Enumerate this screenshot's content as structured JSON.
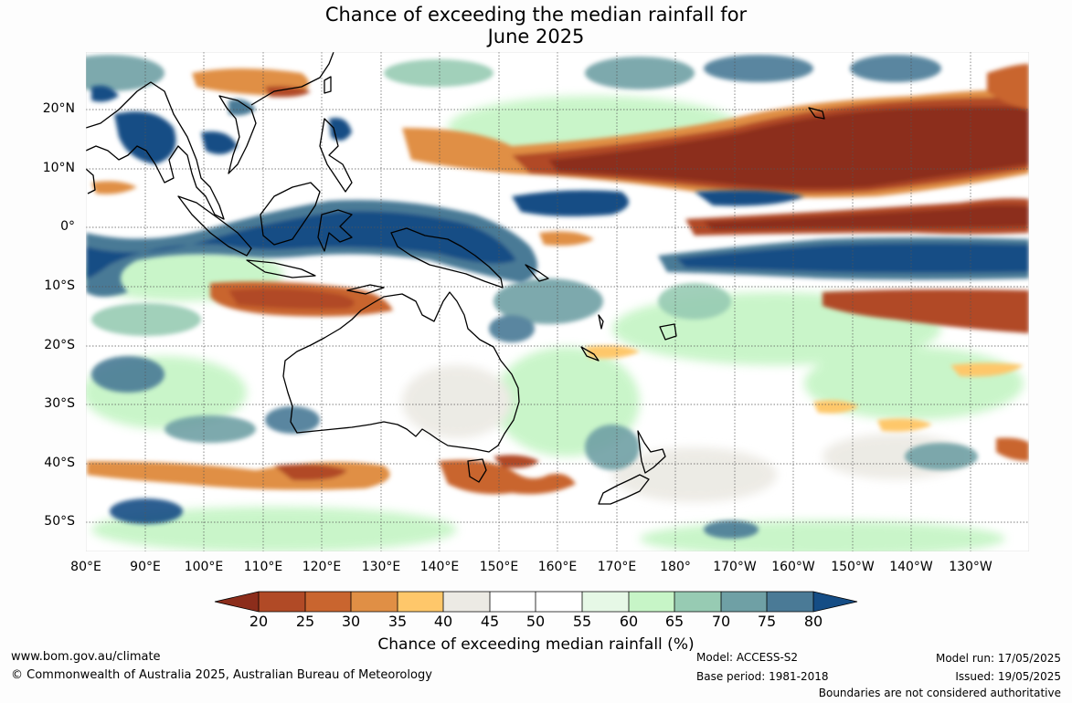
{
  "title": {
    "line1": "Chance of exceeding the median rainfall for",
    "line2": "June 2025"
  },
  "map": {
    "latitude_labels": [
      "20°N",
      "10°N",
      "0°",
      "10°S",
      "20°S",
      "30°S",
      "40°S",
      "50°S"
    ],
    "longitude_labels": [
      "80°E",
      "90°E",
      "100°E",
      "110°E",
      "120°E",
      "130°E",
      "140°E",
      "150°E",
      "160°E",
      "170°E",
      "180°",
      "170°W",
      "160°W",
      "150°W",
      "140°W",
      "130°W"
    ],
    "regions_shown": [
      "Australia",
      "New Zealand",
      "Indonesia",
      "Papua New Guinea",
      "Philippines",
      "South-East Asia",
      "Tropical Pacific Ocean",
      "Indian Ocean"
    ]
  },
  "legend": {
    "title": "Chance of exceeding median rainfall (%)",
    "tick_labels": [
      "20",
      "25",
      "30",
      "35",
      "40",
      "45",
      "50",
      "55",
      "60",
      "65",
      "70",
      "75",
      "80"
    ],
    "colors": [
      "#8c2d1b",
      "#b14a26",
      "#c9652f",
      "#e08f45",
      "#fec76a",
      "#eceae4",
      "#ffffff",
      "#ffffff",
      "#e6f8e6",
      "#c7f5c7",
      "#97cbb3",
      "#6fa0a5",
      "#4a7a96",
      "#154d85"
    ]
  },
  "footer": {
    "website": "www.bom.gov.au/climate",
    "copyright": "© Commonwealth of Australia 2025, Australian Bureau of Meteorology",
    "model": "Model: ACCESS-S2",
    "base_period": "Base period: 1981-2018",
    "model_run": "Model run: 17/05/2025",
    "issued": "Issued: 19/05/2025",
    "disclaimer": "Boundaries are not considered authoritative"
  }
}
